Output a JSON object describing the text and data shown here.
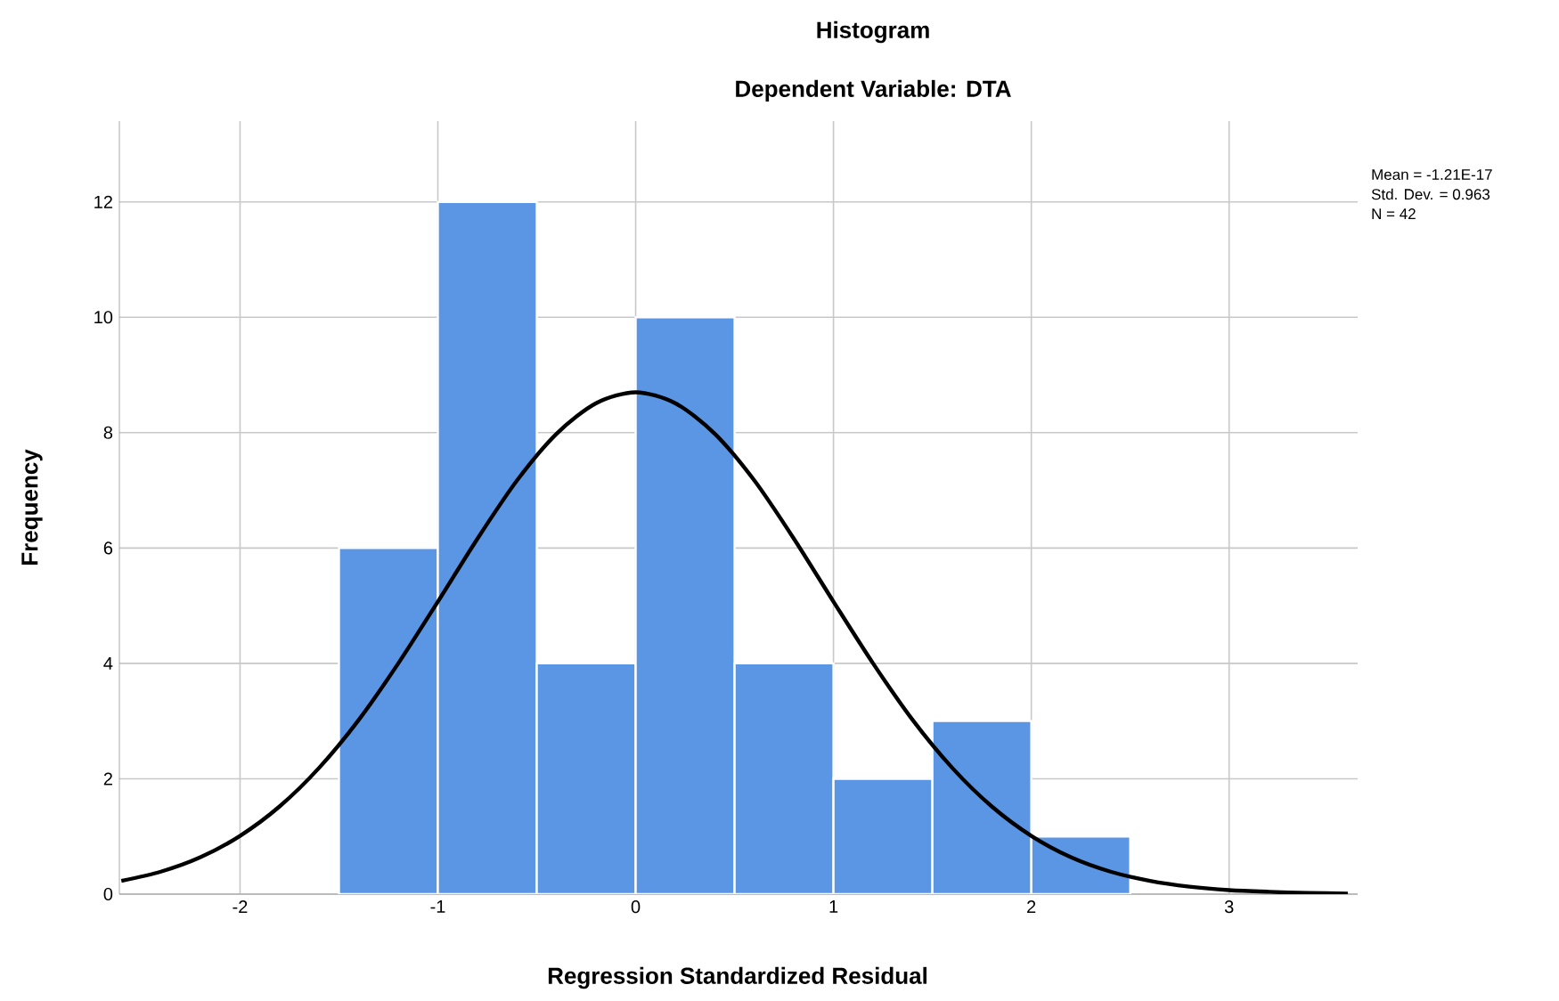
{
  "chart_data": {
    "type": "histogram",
    "title": "Histogram",
    "subtitle": "Dependent Variable: DTA",
    "xlabel": "Regression Standardized Residual",
    "ylabel": "Frequency",
    "bins": [
      -1.5,
      -1.0,
      -0.5,
      0.0,
      0.5,
      1.0,
      1.5,
      2.0,
      2.5
    ],
    "values": [
      6,
      12,
      4,
      10,
      4,
      2,
      3,
      1
    ],
    "color": "#5b96e5",
    "series": [
      {
        "type": "line",
        "color": "#000000",
        "x": [
          -2.6,
          -2.4,
          -2.2,
          -2.0,
          -1.8,
          -1.6,
          -1.4,
          -1.2,
          -1.0,
          -0.8,
          -0.6,
          -0.4,
          -0.2,
          0.0,
          0.2,
          0.4,
          0.6,
          0.8,
          1.0,
          1.2,
          1.4,
          1.6,
          1.8,
          2.0,
          2.2,
          2.4,
          2.6,
          2.8,
          3.0,
          3.2,
          3.4,
          3.6
        ],
        "values": [
          0.23,
          0.39,
          0.64,
          1.01,
          1.52,
          2.19,
          3.02,
          4.0,
          5.07,
          6.16,
          7.17,
          7.98,
          8.51,
          8.7,
          8.51,
          7.98,
          7.17,
          6.16,
          5.07,
          4.0,
          3.02,
          2.19,
          1.52,
          1.01,
          0.64,
          0.39,
          0.23,
          0.13,
          0.07,
          0.04,
          0.02,
          0.01
        ]
      }
    ],
    "xlim": [
      -2.61,
      3.65
    ],
    "ylim": [
      0,
      13.4
    ],
    "xticks": [
      -2,
      -1,
      0,
      1,
      2,
      3
    ],
    "yticks": [
      0,
      2,
      4,
      6,
      8,
      10,
      12
    ],
    "grid": true,
    "annotations": [
      "Mean = -1.21E-17",
      "Std. Dev. = 0.963",
      "N = 42"
    ]
  }
}
